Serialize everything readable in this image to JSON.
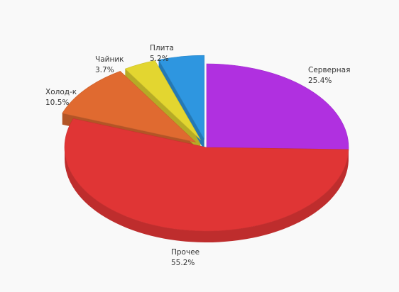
{
  "chart_data": {
    "type": "pie",
    "title": "",
    "slices": [
      {
        "name": "Серверная",
        "value": 25.4,
        "value_label": "25.4%",
        "color": "#b030e0",
        "exploded": false
      },
      {
        "name": "Прочее",
        "value": 55.2,
        "value_label": "55.2%",
        "color": "#e03535",
        "exploded": false
      },
      {
        "name": "Холод-к",
        "value": 10.5,
        "value_label": "10.5%",
        "color": "#e06a30",
        "exploded": true
      },
      {
        "name": "Чайник",
        "value": 3.7,
        "value_label": "3.7%",
        "color": "#e3d630",
        "exploded": true
      },
      {
        "name": "Плита",
        "value": 5.2,
        "value_label": "5.2%",
        "color": "#2e96e0",
        "exploded": true
      }
    ],
    "legend": "none",
    "style": "3d-exploded"
  }
}
